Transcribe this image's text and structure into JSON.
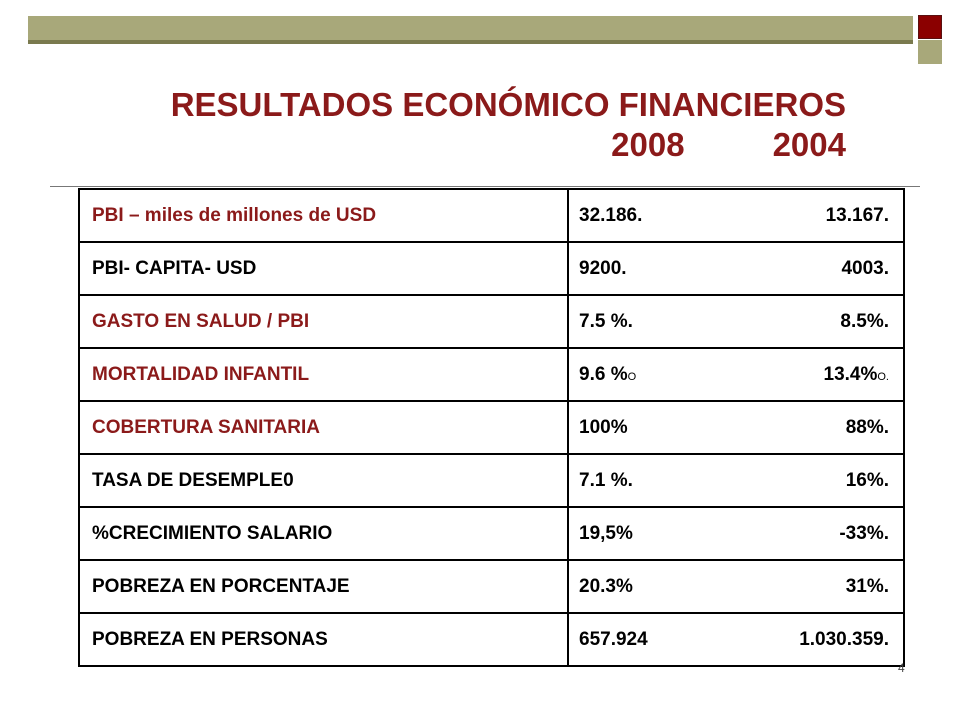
{
  "title": {
    "line1": "RESULTADOS ECONÓMICO FINANCIEROS",
    "year1": "2008",
    "year2": "2004"
  },
  "table": {
    "rows": [
      {
        "label": "PBI – miles de millones de USD",
        "v2008": "32.186.",
        "v2004": "13.167.",
        "color": "red"
      },
      {
        "label": "PBI- CAPITA- USD",
        "v2008": "9200.",
        "v2004": "4003.",
        "color": "black"
      },
      {
        "label": "GASTO EN SALUD / PBI",
        "v2008": "7.5 %.",
        "v2004": "8.5%.",
        "color": "red"
      },
      {
        "label": "MORTALIDAD  INFANTIL",
        "v2008": "9.6 %",
        "v2008_suffix": "O",
        "v2004": "13.4%",
        "v2004_suffix": "O.",
        "color": "red"
      },
      {
        "label": "COBERTURA SANITARIA",
        "v2008": "100%",
        "v2004": "88%.",
        "color": "red"
      },
      {
        "label": "TASA DE DESEMPLE0",
        "v2008": "7.1 %.",
        "v2004": "16%.",
        "color": "black"
      },
      {
        "label": "%CRECIMIENTO SALARIO",
        "v2008": "19,5%",
        "v2004": "-33%.",
        "color": "black"
      },
      {
        "label": "POBREZA EN PORCENTAJE",
        "v2008": "20.3%",
        "v2004": "31%.",
        "color": "black"
      },
      {
        "label": "POBREZA EN PERSONAS",
        "v2008": "657.924",
        "v2004": "1.030.359.",
        "color": "black"
      }
    ]
  },
  "page_number": "4",
  "colors": {
    "title": "#8b1a1a",
    "bar": "#a8a87a",
    "square": "#8b0000"
  }
}
